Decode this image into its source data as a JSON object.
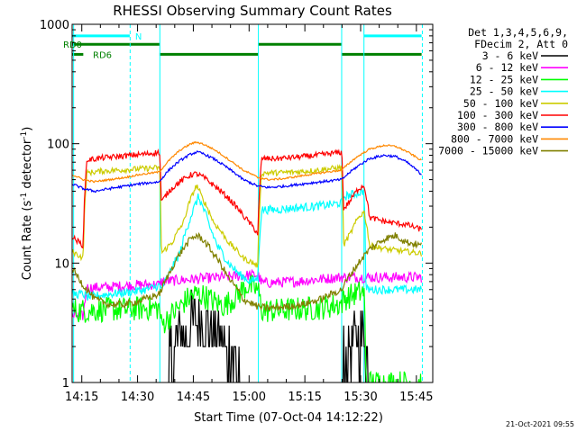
{
  "chart_data": {
    "type": "line",
    "title": "RHESSI Observing Summary Count Rates",
    "xlabel": "Start Time (07-Oct-04 14:12:22)",
    "ylabel": "Count Rate (s",
    "ylabel_sup1": "-1",
    "ylabel_mid": " detector",
    "ylabel_sup2": "-1",
    "ylabel_end": ")",
    "y_scale": "log",
    "ylim": [
      1,
      1000
    ],
    "xlim_minutes": [
      0,
      97
    ],
    "x_ticks": [
      {
        "label": "14:15",
        "minute": 2.6
      },
      {
        "label": "14:30",
        "minute": 17.6
      },
      {
        "label": "14:45",
        "minute": 32.6
      },
      {
        "label": "15:00",
        "minute": 47.6
      },
      {
        "label": "15:15",
        "minute": 62.6
      },
      {
        "label": "15:30",
        "minute": 77.6
      },
      {
        "label": "15:45",
        "minute": 92.6
      }
    ],
    "y_ticks": [
      {
        "label": "1",
        "value": 1
      },
      {
        "label": "10",
        "value": 10
      },
      {
        "label": "100",
        "value": 100
      },
      {
        "label": "1000",
        "value": 1000
      }
    ],
    "legend": {
      "position": "right",
      "header": [
        "Det 1,3,4,5,6,9,",
        "FDecim 2, Att 0"
      ]
    },
    "flags": [
      {
        "label": "N",
        "color": "#00ffff",
        "segments": [
          [
            0,
            15.5
          ],
          [
            78.5,
            94
          ]
        ],
        "level": 800
      },
      {
        "label": "RD0",
        "color": "#008000",
        "segments": [
          [
            0,
            23.5
          ],
          [
            50,
            72.5
          ]
        ],
        "level": 680
      },
      {
        "label": "RD6",
        "color": "#008000",
        "segments": [
          [
            0,
            3
          ],
          [
            23.5,
            50
          ],
          [
            72.5,
            94
          ]
        ],
        "level": 560
      }
    ],
    "vertical_lines": [
      {
        "minute": 0.4,
        "color": "#00ffff",
        "style": "solid"
      },
      {
        "minute": 15.6,
        "color": "#00ffff",
        "style": "dashed"
      },
      {
        "minute": 23.6,
        "color": "#00ffff",
        "style": "solid"
      },
      {
        "minute": 50.1,
        "color": "#00ffff",
        "style": "solid"
      },
      {
        "minute": 72.5,
        "color": "#00ffff",
        "style": "solid"
      },
      {
        "minute": 78.5,
        "color": "#00ffff",
        "style": "solid"
      },
      {
        "minute": 94.2,
        "color": "#00ffff",
        "style": "dashed"
      }
    ],
    "series": [
      {
        "name": "3 - 6 keV",
        "color": "#000000",
        "noise": 0.9,
        "dropout_below": 1.5,
        "x": [
          0,
          3,
          4,
          23.5,
          24,
          26,
          28,
          30,
          32,
          33.5,
          35,
          37,
          39,
          41,
          43,
          45,
          47,
          49,
          50,
          72.5,
          73,
          75,
          77,
          78.5,
          80,
          94
        ],
        "y": [
          1.0,
          1.0,
          1.0,
          1.0,
          1.1,
          1.5,
          2.0,
          2.6,
          3.2,
          3.5,
          3.2,
          2.7,
          2.3,
          2.0,
          1.7,
          1.5,
          1.2,
          1.1,
          1.0,
          1.0,
          1.5,
          2.0,
          2.5,
          2.6,
          1.0,
          1.0
        ]
      },
      {
        "name": "6 - 12 keV",
        "color": "#ff00ff",
        "noise": 0.15,
        "x": [
          0,
          3,
          4,
          10,
          15,
          20,
          23.5,
          24,
          50,
          51,
          60,
          72,
          72.5,
          94
        ],
        "y": [
          3.6,
          3.6,
          6.2,
          6.3,
          6.5,
          6.6,
          6.6,
          7.0,
          8.0,
          6.8,
          7.0,
          7.6,
          7.6,
          7.6
        ]
      },
      {
        "name": "12 - 25 keV",
        "color": "#00ff00",
        "noise": 0.35,
        "x": [
          0,
          3,
          4,
          10,
          15,
          20,
          23.5,
          24,
          26,
          29,
          31,
          33,
          35,
          37,
          39,
          41,
          44,
          47,
          50,
          51,
          55,
          60,
          66,
          70,
          72.5,
          73,
          76,
          78.5,
          79,
          94
        ],
        "y": [
          4.0,
          4.0,
          4.0,
          4.1,
          4.1,
          4.2,
          4.2,
          3.0,
          3.5,
          4.3,
          5.0,
          5.5,
          5.4,
          5.0,
          4.6,
          4.4,
          5.2,
          6.5,
          6.0,
          4.0,
          4.0,
          4.1,
          4.2,
          4.4,
          4.6,
          5.0,
          5.5,
          5.8,
          1.0,
          1.0
        ]
      },
      {
        "name": "25 - 50 keV",
        "color": "#00ffff",
        "noise": 0.12,
        "x": [
          0,
          3,
          4,
          10,
          15,
          20,
          23.5,
          24,
          26,
          29,
          31,
          33,
          34,
          35,
          37,
          39,
          42,
          45,
          48,
          50,
          51,
          55,
          60,
          66,
          70,
          72.5,
          73,
          76,
          78.5,
          79,
          85,
          90,
          94
        ],
        "y": [
          5.5,
          5.5,
          5.2,
          5.5,
          5.7,
          6.0,
          6.5,
          6.0,
          8.0,
          12.0,
          20.0,
          30.0,
          36.0,
          30.0,
          20.0,
          14.0,
          10.0,
          8.0,
          7.0,
          7.5,
          28.0,
          28.0,
          29.0,
          30.0,
          31.0,
          32.0,
          36.0,
          38.0,
          40.0,
          6.0,
          6.0,
          6.0,
          6.0
        ]
      },
      {
        "name": "50 - 100 keV",
        "color": "#cccc00",
        "noise": 0.08,
        "x": [
          0,
          3,
          4,
          8,
          12,
          16,
          20,
          23.5,
          24,
          27,
          30,
          32,
          33.5,
          35,
          38,
          42,
          46,
          50,
          51,
          55,
          60,
          66,
          70,
          72.5,
          73,
          75,
          77,
          78.5,
          80,
          85,
          90,
          94
        ],
        "y": [
          12.5,
          11.0,
          57.0,
          59.0,
          60.0,
          61.0,
          62.0,
          63.0,
          12.0,
          15.0,
          22.0,
          35.0,
          45.0,
          35.0,
          22.0,
          15.0,
          11.0,
          9.5,
          57.0,
          57.0,
          58.0,
          60.0,
          62.0,
          63.0,
          14.0,
          18.0,
          24.0,
          27.0,
          14.0,
          13.0,
          12.5,
          12.0
        ]
      },
      {
        "name": "100 - 300 keV",
        "color": "#ff0000",
        "noise": 0.08,
        "x": [
          0,
          3,
          4,
          8,
          12,
          16,
          20,
          23.5,
          24,
          26,
          29,
          32,
          33.5,
          35,
          38,
          42,
          46,
          50,
          51,
          55,
          60,
          66,
          70,
          72.5,
          73,
          75,
          77,
          78.5,
          80,
          85,
          90,
          94
        ],
        "y": [
          16.5,
          14.0,
          73.0,
          76.0,
          78.0,
          80.0,
          82.0,
          85.0,
          32.0,
          40.0,
          48.0,
          55.0,
          56.0,
          53.0,
          45.0,
          35.0,
          25.0,
          17.5,
          75.0,
          75.0,
          77.0,
          80.0,
          83.0,
          85.0,
          28.0,
          34.0,
          42.0,
          45.0,
          24.0,
          22.0,
          21.0,
          19.0
        ]
      },
      {
        "name": "300 - 800 keV",
        "color": "#0000ff",
        "noise": 0.035,
        "x": [
          0,
          3,
          6,
          10,
          14,
          18,
          23.5,
          26,
          29,
          32,
          33.5,
          35,
          38,
          42,
          46,
          50,
          53,
          57,
          62,
          67,
          72.5,
          76,
          80,
          84,
          87,
          90,
          94
        ],
        "y": [
          46.0,
          42.0,
          40.0,
          42.0,
          44.0,
          46.0,
          48.0,
          60.0,
          72.0,
          82.0,
          85.0,
          83.0,
          75.0,
          62.0,
          50.0,
          44.0,
          43.0,
          44.0,
          46.0,
          48.0,
          50.0,
          62.0,
          75.0,
          80.0,
          78.0,
          70.0,
          55.0
        ]
      },
      {
        "name": "800 - 7000 keV",
        "color": "#ff8800",
        "noise": 0.025,
        "x": [
          0,
          3,
          6,
          10,
          14,
          18,
          23.5,
          26,
          29,
          32,
          33.5,
          35,
          38,
          42,
          46,
          50,
          53,
          57,
          62,
          67,
          72.5,
          76,
          80,
          84,
          87,
          90,
          94
        ],
        "y": [
          55.0,
          50.0,
          48.0,
          50.0,
          52.0,
          55.0,
          58.0,
          72.0,
          88.0,
          100.0,
          103.0,
          100.0,
          90.0,
          74.0,
          60.0,
          52.0,
          50.0,
          51.0,
          54.0,
          57.0,
          60.0,
          75.0,
          90.0,
          97.0,
          95.0,
          86.0,
          72.0
        ]
      },
      {
        "name": "7000 - 15000 keV",
        "color": "#808000",
        "noise": 0.1,
        "x": [
          0,
          3,
          6,
          10,
          14,
          18,
          23.5,
          26,
          29,
          32,
          33.5,
          35,
          38,
          42,
          46,
          50,
          53,
          57,
          62,
          67,
          72.5,
          76,
          80,
          84,
          87,
          90,
          94
        ],
        "y": [
          9.0,
          6.5,
          5.0,
          4.5,
          4.5,
          4.8,
          5.5,
          8.0,
          12.0,
          16.0,
          17.0,
          16.0,
          12.0,
          7.5,
          5.0,
          4.3,
          4.2,
          4.3,
          4.5,
          5.0,
          6.0,
          9.0,
          13.0,
          16.0,
          17.0,
          15.0,
          14.0
        ]
      }
    ]
  },
  "footer": {
    "timestamp": "21-Oct-2021 09:55"
  }
}
